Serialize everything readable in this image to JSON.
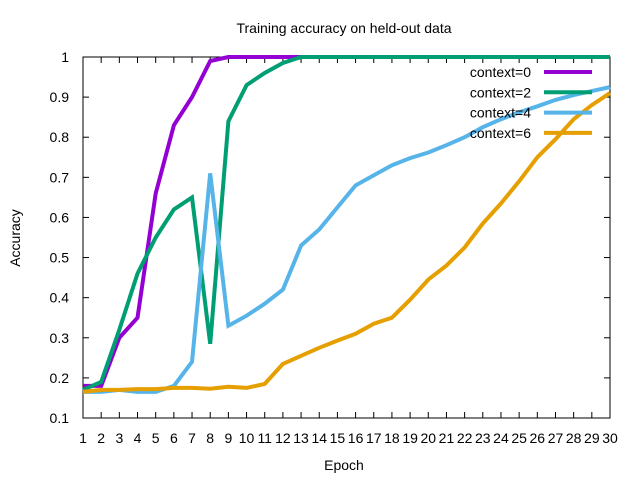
{
  "chart_data": {
    "type": "line",
    "title": "Training accuracy on held-out data",
    "xlabel": "Epoch",
    "ylabel": "Accuracy",
    "xlim": [
      1,
      30
    ],
    "ylim": [
      0.1,
      1.0
    ],
    "x_ticks": [
      "1",
      "2",
      "3",
      "4",
      "5",
      "6",
      "7",
      "8",
      "9",
      "10",
      "11",
      "12",
      "13",
      "14",
      "15",
      "16",
      "17",
      "18",
      "19",
      "20",
      "21",
      "22",
      "23",
      "24",
      "25",
      "26",
      "27",
      "28",
      "29",
      "30"
    ],
    "y_ticks": [
      "0.1",
      "0.2",
      "0.3",
      "0.4",
      "0.5",
      "0.6",
      "0.7",
      "0.8",
      "0.9",
      "1"
    ],
    "y_tick_values": [
      0.1,
      0.2,
      0.3,
      0.4,
      0.5,
      0.6,
      0.7,
      0.8,
      0.9,
      1.0
    ],
    "grid": false,
    "legend_position": "top-right",
    "x": [
      1,
      2,
      3,
      4,
      5,
      6,
      7,
      8,
      9,
      10,
      11,
      12,
      13,
      14,
      15,
      16,
      17,
      18,
      19,
      20,
      21,
      22,
      23,
      24,
      25,
      26,
      27,
      28,
      29,
      30
    ],
    "series": [
      {
        "name": "context=0",
        "color": "#9400d3",
        "values": [
          0.18,
          0.18,
          0.3,
          0.35,
          0.66,
          0.83,
          0.9,
          0.99,
          1.0,
          1.0,
          1.0,
          1.0,
          1.0,
          1.0,
          1.0,
          1.0,
          1.0,
          1.0,
          1.0,
          1.0,
          1.0,
          1.0,
          1.0,
          1.0,
          1.0,
          1.0,
          1.0,
          1.0,
          1.0,
          1.0
        ]
      },
      {
        "name": "context=2",
        "color": "#009e73",
        "values": [
          0.17,
          0.19,
          0.32,
          0.46,
          0.55,
          0.62,
          0.65,
          0.285,
          0.84,
          0.93,
          0.96,
          0.985,
          1.0,
          1.0,
          1.0,
          1.0,
          1.0,
          1.0,
          1.0,
          1.0,
          1.0,
          1.0,
          1.0,
          1.0,
          1.0,
          1.0,
          1.0,
          1.0,
          1.0,
          1.0
        ]
      },
      {
        "name": "context=4",
        "color": "#56b4e9",
        "values": [
          0.165,
          0.165,
          0.17,
          0.165,
          0.165,
          0.18,
          0.24,
          0.71,
          0.33,
          0.355,
          0.385,
          0.42,
          0.53,
          0.57,
          0.625,
          0.68,
          0.705,
          0.73,
          0.748,
          0.762,
          0.78,
          0.8,
          0.825,
          0.845,
          0.862,
          0.877,
          0.893,
          0.905,
          0.915,
          0.925
        ]
      },
      {
        "name": "context=6",
        "color": "#e69f00",
        "values": [
          0.165,
          0.17,
          0.17,
          0.172,
          0.172,
          0.175,
          0.175,
          0.173,
          0.178,
          0.175,
          0.185,
          0.235,
          0.255,
          0.275,
          0.293,
          0.31,
          0.335,
          0.35,
          0.395,
          0.445,
          0.48,
          0.525,
          0.585,
          0.635,
          0.69,
          0.75,
          0.795,
          0.845,
          0.88,
          0.91
        ]
      }
    ]
  }
}
